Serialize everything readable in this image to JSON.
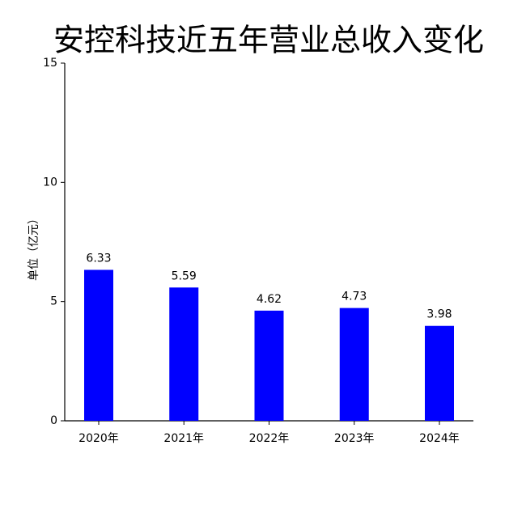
{
  "chart_data": {
    "type": "bar",
    "title": "安控科技近五年营业总收入变化",
    "ylabel": "单位（亿元）",
    "categories": [
      "2020年",
      "2021年",
      "2022年",
      "2023年",
      "2024年"
    ],
    "values": [
      6.33,
      5.59,
      4.62,
      4.73,
      3.98
    ],
    "color": "#0000ff",
    "ylim": [
      0,
      15
    ],
    "yticks": [
      0,
      5,
      10,
      15
    ],
    "grid": false
  }
}
